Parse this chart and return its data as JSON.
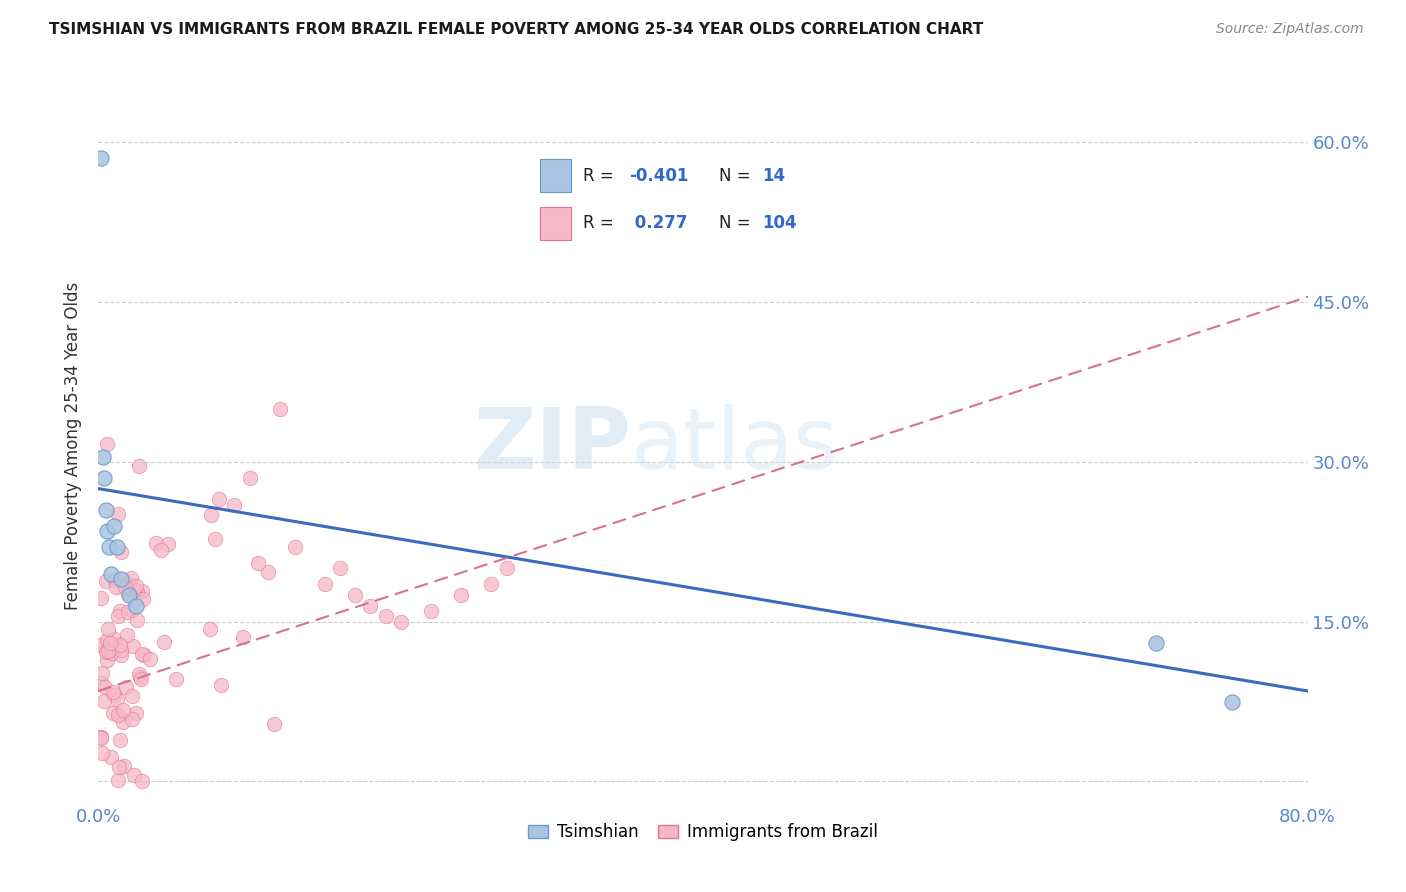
{
  "title": "TSIMSHIAN VS IMMIGRANTS FROM BRAZIL FEMALE POVERTY AMONG 25-34 YEAR OLDS CORRELATION CHART",
  "source": "Source: ZipAtlas.com",
  "ylabel": "Female Poverty Among 25-34 Year Olds",
  "xlim": [
    0.0,
    0.8
  ],
  "ylim": [
    -0.02,
    0.65
  ],
  "y_ticks": [
    0.0,
    0.15,
    0.3,
    0.45,
    0.6
  ],
  "y_tick_labels": [
    "",
    "15.0%",
    "30.0%",
    "45.0%",
    "60.0%"
  ],
  "x_ticks": [
    0.0,
    0.1,
    0.2,
    0.3,
    0.4,
    0.5,
    0.6,
    0.7,
    0.8
  ],
  "x_tick_labels": [
    "0.0%",
    "",
    "",
    "",
    "",
    "",
    "",
    "",
    "80.0%"
  ],
  "grid_color": "#cccccc",
  "background_color": "#ffffff",
  "watermark_zip": "ZIP",
  "watermark_atlas": "atlas",
  "tsimshian_color": "#a8c4e0",
  "tsimshian_edge": "#6699cc",
  "brazil_color": "#f5b8c8",
  "brazil_edge": "#e87090",
  "tsimshian_line_color": "#3a6bbf",
  "brazil_line_color": "#d97090",
  "R_tsimshian": -0.401,
  "N_tsimshian": 14,
  "R_brazil": 0.277,
  "N_brazil": 104,
  "ts_line_x0": 0.0,
  "ts_line_y0": 0.275,
  "ts_line_x1": 0.8,
  "ts_line_y1": 0.085,
  "br_line_x0": 0.0,
  "br_line_y0": 0.085,
  "br_line_x1": 0.8,
  "br_line_y1": 0.455,
  "legend_label_tsimshian": "Tsimshian",
  "legend_label_brazil": "Immigrants from Brazil",
  "tick_color": "#5588cc",
  "text_color": "#333333"
}
